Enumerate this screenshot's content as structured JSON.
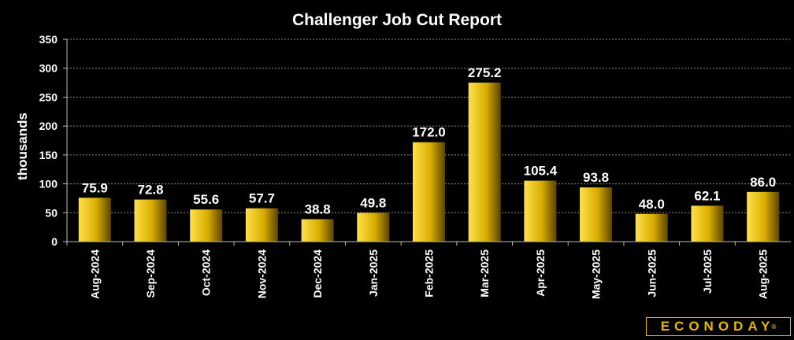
{
  "chart_data": {
    "type": "bar",
    "title": "Challenger Job Cut Report",
    "xlabel": "",
    "ylabel": "thousands",
    "ylim": [
      0,
      350
    ],
    "yticks": [
      0,
      50,
      100,
      150,
      200,
      250,
      300,
      350
    ],
    "grid": true,
    "legend": "none",
    "categories": [
      "Aug-2024",
      "Sep-2024",
      "Oct-2024",
      "Nov-2024",
      "Dec-2024",
      "Jan-2025",
      "Feb-2025",
      "Mar-2025",
      "Apr-2025",
      "May-2025",
      "Jun-2025",
      "Jul-2025",
      "Aug-2025"
    ],
    "values": [
      75.9,
      72.8,
      55.6,
      57.7,
      38.8,
      49.8,
      172.0,
      275.2,
      105.4,
      93.8,
      48.0,
      62.1,
      86.0
    ],
    "value_labels": [
      "75.9",
      "72.8",
      "55.6",
      "57.7",
      "38.8",
      "49.8",
      "172.0",
      "275.2",
      "105.4",
      "93.8",
      "48.0",
      "62.1",
      "86.0"
    ],
    "colors": {
      "bar_light": "#ffe14a",
      "bar_mid": "#e6b800",
      "bar_dark": "#5a4400",
      "background": "#000000",
      "text": "#ffffff",
      "grid": "#8a8a8a"
    }
  },
  "brand": {
    "logo": "ECONODAY",
    "registered": "®"
  }
}
